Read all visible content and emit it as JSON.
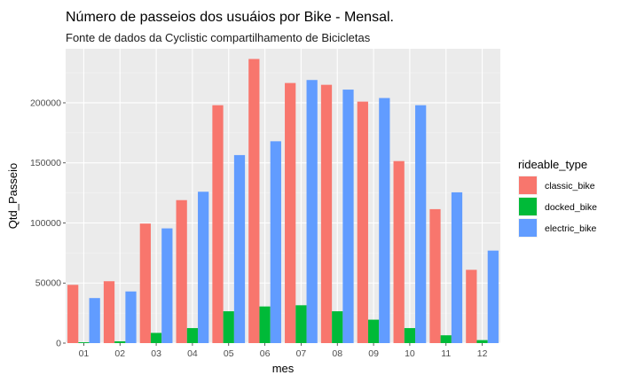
{
  "chart_data": {
    "type": "bar",
    "title": "Número de passeios dos usuáios por Bike - Mensal.",
    "subtitle": "Fonte de dados da Cyclistic compartilhamento de Bicicletas",
    "xlabel": "mes",
    "ylabel": "Qtd_Passeio",
    "categories": [
      "01",
      "02",
      "03",
      "04",
      "05",
      "06",
      "07",
      "08",
      "09",
      "10",
      "11",
      "12"
    ],
    "ylim": [
      0,
      245000
    ],
    "yticks": [
      0,
      50000,
      100000,
      150000,
      200000
    ],
    "ytick_labels": [
      "0",
      "50000",
      "100000",
      "150000",
      "200000"
    ],
    "grid": true,
    "legend": {
      "title": "rideable_type",
      "position": "right"
    },
    "series": [
      {
        "name": "classic_bike",
        "color": "#F8766D",
        "values": [
          48500,
          51500,
          99500,
          119000,
          198000,
          236500,
          216500,
          215000,
          201000,
          151500,
          111500,
          61000
        ]
      },
      {
        "name": "docked_bike",
        "color": "#00BA38",
        "values": [
          700,
          1500,
          8500,
          12500,
          26500,
          30500,
          31500,
          26500,
          19500,
          12500,
          6500,
          2500
        ]
      },
      {
        "name": "electric_bike",
        "color": "#619CFF",
        "values": [
          37500,
          43000,
          95500,
          126000,
          156500,
          168000,
          219000,
          211000,
          204000,
          198000,
          125500,
          77000
        ]
      }
    ]
  }
}
